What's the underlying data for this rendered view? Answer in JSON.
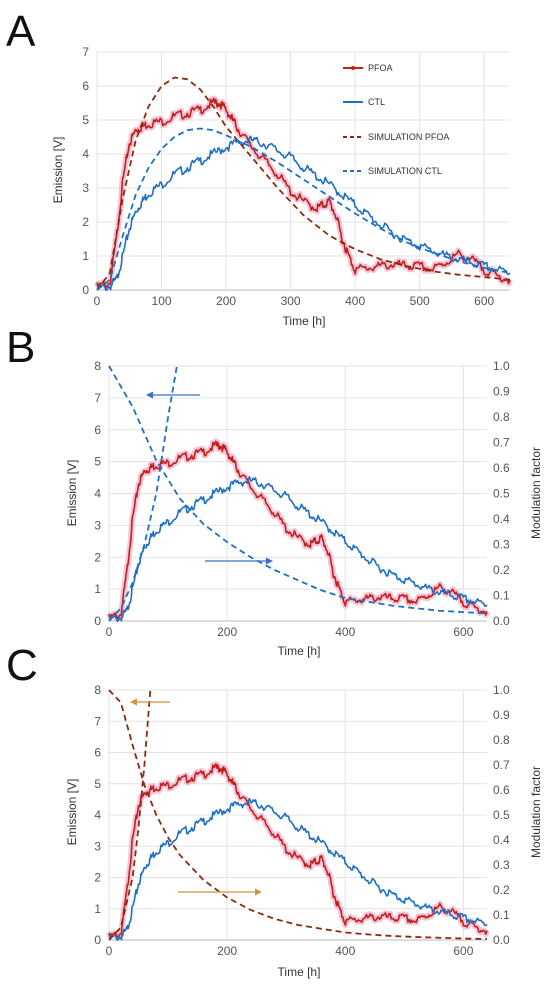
{
  "panels": [
    {
      "label": "A",
      "xlabel": "Time [h]",
      "ylabel": "Emission [V]",
      "xticks": [
        0,
        100,
        200,
        300,
        400,
        500,
        600
      ],
      "yticks": [
        0,
        1,
        2,
        3,
        4,
        5,
        6,
        7
      ],
      "legend": [
        "PFOA",
        "CTL",
        "SIMULATION PFOA",
        "SIMULATION CTL"
      ]
    },
    {
      "label": "B",
      "xlabel": "Time [h]",
      "ylabel": "Emission [V]",
      "y2label": "Modulation factor",
      "xticks": [
        0,
        200,
        400,
        600
      ],
      "yticks": [
        0,
        1,
        2,
        3,
        4,
        5,
        6,
        7,
        8
      ],
      "y2ticks": [
        "0.0",
        "0.1",
        "0.2",
        "0.3",
        "0.4",
        "0.5",
        "0.6",
        "0.7",
        "0.8",
        "0.9",
        "1.0"
      ]
    },
    {
      "label": "C",
      "xlabel": "Time [h]",
      "ylabel": "Emission [V]",
      "y2label": "Modulation factor",
      "xticks": [
        0,
        200,
        400,
        600
      ],
      "yticks": [
        0,
        1,
        2,
        3,
        4,
        5,
        6,
        7,
        8
      ],
      "y2ticks": [
        "0.0",
        "0.1",
        "0.2",
        "0.3",
        "0.4",
        "0.5",
        "0.6",
        "0.7",
        "0.8",
        "0.9",
        "1.0"
      ]
    }
  ],
  "colors": {
    "pfoa": "#c0211d",
    "pfoa_glow": "#f2b8cf",
    "ctl": "#1f6fc5",
    "sim_pfoa": "#8b2a10",
    "sim_ctl": "#1f6fc5",
    "arrow_b": "#3a6fc8",
    "arrow_c": "#d2913a",
    "grid": "#e3e3e3"
  },
  "chart_data": [
    {
      "type": "line",
      "xlim": [
        0,
        640
      ],
      "ylim": [
        0,
        7
      ],
      "grid": true,
      "legend_position": "top-right",
      "series": [
        {
          "name": "PFOA",
          "style": "solid",
          "x": [
            0,
            20,
            30,
            40,
            50,
            60,
            70,
            80,
            100,
            120,
            140,
            160,
            180,
            190,
            200,
            210,
            220,
            240,
            260,
            280,
            300,
            320,
            340,
            350,
            360,
            370,
            380,
            390,
            400,
            420,
            440,
            460,
            480,
            500,
            520,
            540,
            560,
            580,
            600,
            620,
            640
          ],
          "y": [
            0.1,
            0.2,
            1.5,
            3.2,
            4.3,
            4.7,
            4.8,
            4.9,
            4.95,
            5.1,
            5.2,
            5.3,
            5.5,
            5.5,
            5.3,
            5.0,
            4.7,
            4.2,
            3.8,
            3.4,
            2.9,
            2.6,
            2.4,
            2.5,
            2.6,
            2.2,
            1.5,
            1.0,
            0.6,
            0.65,
            0.7,
            0.75,
            0.7,
            0.7,
            0.6,
            0.8,
            1.05,
            0.9,
            0.6,
            0.4,
            0.3
          ]
        },
        {
          "name": "CTL",
          "style": "solid",
          "x": [
            0,
            20,
            30,
            40,
            50,
            60,
            70,
            80,
            100,
            120,
            140,
            160,
            180,
            200,
            220,
            240,
            260,
            280,
            300,
            320,
            340,
            360,
            380,
            400,
            420,
            440,
            460,
            480,
            500,
            520,
            540,
            560,
            580,
            600,
            620,
            640
          ],
          "y": [
            0.05,
            0.1,
            0.3,
            1.0,
            1.8,
            2.3,
            2.6,
            2.85,
            3.1,
            3.4,
            3.6,
            3.8,
            4.0,
            4.2,
            4.35,
            4.4,
            4.3,
            4.1,
            3.9,
            3.6,
            3.35,
            3.1,
            2.8,
            2.5,
            2.2,
            1.9,
            1.65,
            1.45,
            1.3,
            1.15,
            1.0,
            0.9,
            0.8,
            0.7,
            0.6,
            0.5
          ]
        },
        {
          "name": "SIMULATION PFOA",
          "style": "dashed",
          "x": [
            0,
            20,
            40,
            60,
            80,
            100,
            120,
            140,
            160,
            180,
            200,
            240,
            280,
            320,
            360,
            400,
            440,
            480,
            520,
            560,
            600,
            640
          ],
          "y": [
            0,
            0.5,
            2.7,
            4.4,
            5.4,
            6.0,
            6.25,
            6.2,
            5.9,
            5.4,
            4.8,
            3.9,
            3.0,
            2.2,
            1.6,
            1.2,
            0.9,
            0.7,
            0.55,
            0.45,
            0.38,
            0.3
          ]
        },
        {
          "name": "SIMULATION CTL",
          "style": "dashed",
          "x": [
            0,
            20,
            40,
            60,
            80,
            100,
            120,
            140,
            160,
            180,
            200,
            240,
            280,
            320,
            360,
            400,
            440,
            480,
            520,
            560,
            600,
            640
          ],
          "y": [
            0,
            0.3,
            1.6,
            2.8,
            3.6,
            4.15,
            4.5,
            4.7,
            4.75,
            4.7,
            4.55,
            4.2,
            3.75,
            3.25,
            2.75,
            2.25,
            1.8,
            1.4,
            1.1,
            0.85,
            0.65,
            0.5
          ]
        }
      ]
    },
    {
      "type": "line",
      "xlim": [
        0,
        640
      ],
      "ylim": [
        0,
        8
      ],
      "y2lim": [
        0,
        1
      ],
      "grid": true,
      "series": [
        {
          "style": "solid",
          "color": "pfoa",
          "x": [
            0,
            20,
            30,
            40,
            50,
            60,
            70,
            80,
            100,
            120,
            140,
            160,
            180,
            190,
            200,
            210,
            220,
            240,
            260,
            280,
            300,
            320,
            340,
            350,
            360,
            370,
            380,
            390,
            400,
            420,
            440,
            460,
            480,
            500,
            520,
            540,
            560,
            580,
            600,
            620,
            640
          ],
          "y": [
            0.1,
            0.2,
            1.5,
            3.2,
            4.3,
            4.7,
            4.8,
            4.9,
            4.95,
            5.1,
            5.2,
            5.3,
            5.5,
            5.5,
            5.3,
            5.0,
            4.7,
            4.2,
            3.8,
            3.4,
            2.9,
            2.6,
            2.4,
            2.5,
            2.6,
            2.2,
            1.5,
            1.0,
            0.6,
            0.65,
            0.7,
            0.75,
            0.7,
            0.7,
            0.6,
            0.8,
            1.05,
            0.9,
            0.6,
            0.4,
            0.3
          ]
        },
        {
          "style": "solid",
          "color": "ctl",
          "x": [
            0,
            20,
            30,
            40,
            50,
            60,
            70,
            80,
            100,
            120,
            140,
            160,
            180,
            200,
            220,
            240,
            260,
            280,
            300,
            320,
            340,
            360,
            380,
            400,
            420,
            440,
            460,
            480,
            500,
            520,
            540,
            560,
            580,
            600,
            620,
            640
          ],
          "y": [
            0.05,
            0.1,
            0.3,
            1.0,
            1.8,
            2.3,
            2.6,
            2.85,
            3.1,
            3.4,
            3.6,
            3.8,
            4.0,
            4.2,
            4.35,
            4.4,
            4.3,
            4.1,
            3.9,
            3.6,
            3.35,
            3.1,
            2.8,
            2.5,
            2.2,
            1.9,
            1.65,
            1.45,
            1.3,
            1.15,
            1.0,
            0.9,
            0.8,
            0.7,
            0.6,
            0.5
          ]
        },
        {
          "style": "dashed",
          "color": "sim_ctl",
          "axis": "y2",
          "x": [
            0,
            40,
            80,
            120,
            160,
            200,
            240,
            280,
            320,
            360,
            400,
            440,
            480,
            520,
            560,
            600,
            640
          ],
          "y": [
            1.0,
            0.84,
            0.63,
            0.48,
            0.38,
            0.31,
            0.25,
            0.2,
            0.16,
            0.12,
            0.09,
            0.075,
            0.06,
            0.05,
            0.04,
            0.035,
            0.03
          ]
        },
        {
          "style": "dashed",
          "color": "sim_ctl",
          "axis": "y2",
          "x": [
            0,
            20,
            40,
            60,
            80,
            100,
            115
          ],
          "y": [
            0.0,
            0.05,
            0.15,
            0.3,
            0.5,
            0.8,
            1.0
          ]
        }
      ]
    },
    {
      "type": "line",
      "xlim": [
        0,
        640
      ],
      "ylim": [
        0,
        8
      ],
      "y2lim": [
        0,
        1
      ],
      "grid": true,
      "series": [
        {
          "style": "solid",
          "color": "pfoa",
          "x": [
            0,
            20,
            30,
            40,
            50,
            60,
            70,
            80,
            100,
            120,
            140,
            160,
            180,
            190,
            200,
            210,
            220,
            240,
            260,
            280,
            300,
            320,
            340,
            350,
            360,
            370,
            380,
            390,
            400,
            420,
            440,
            460,
            480,
            500,
            520,
            540,
            560,
            580,
            600,
            620,
            640
          ],
          "y": [
            0.1,
            0.2,
            1.5,
            3.2,
            4.3,
            4.7,
            4.8,
            4.9,
            4.95,
            5.1,
            5.2,
            5.3,
            5.5,
            5.5,
            5.3,
            5.0,
            4.7,
            4.2,
            3.8,
            3.4,
            2.9,
            2.6,
            2.4,
            2.5,
            2.6,
            2.2,
            1.5,
            1.0,
            0.6,
            0.65,
            0.7,
            0.75,
            0.7,
            0.7,
            0.6,
            0.8,
            1.05,
            0.9,
            0.6,
            0.4,
            0.3
          ]
        },
        {
          "style": "solid",
          "color": "ctl",
          "x": [
            0,
            20,
            30,
            40,
            50,
            60,
            70,
            80,
            100,
            120,
            140,
            160,
            180,
            200,
            220,
            240,
            260,
            280,
            300,
            320,
            340,
            360,
            380,
            400,
            420,
            440,
            460,
            480,
            500,
            520,
            540,
            560,
            580,
            600,
            620,
            640
          ],
          "y": [
            0.05,
            0.1,
            0.3,
            1.0,
            1.8,
            2.3,
            2.6,
            2.85,
            3.1,
            3.4,
            3.6,
            3.8,
            4.0,
            4.2,
            4.35,
            4.4,
            4.3,
            4.1,
            3.9,
            3.6,
            3.35,
            3.1,
            2.8,
            2.5,
            2.2,
            1.9,
            1.65,
            1.45,
            1.3,
            1.15,
            1.0,
            0.9,
            0.8,
            0.7,
            0.6,
            0.5
          ]
        },
        {
          "style": "dashed",
          "color": "sim_pfoa",
          "axis": "y2",
          "x": [
            0,
            20,
            40,
            60,
            80,
            100,
            120,
            160,
            200,
            240,
            280,
            320,
            360,
            400,
            440,
            480,
            520,
            560,
            600,
            640
          ],
          "y": [
            1.0,
            0.95,
            0.78,
            0.62,
            0.5,
            0.41,
            0.34,
            0.24,
            0.17,
            0.12,
            0.085,
            0.06,
            0.045,
            0.03,
            0.022,
            0.016,
            0.012,
            0.009,
            0.006,
            0.004
          ]
        },
        {
          "style": "dashed",
          "color": "sim_pfoa",
          "axis": "y2",
          "x": [
            0,
            20,
            40,
            50,
            60,
            70
          ],
          "y": [
            0.0,
            0.05,
            0.25,
            0.45,
            0.7,
            1.0
          ]
        }
      ]
    }
  ]
}
